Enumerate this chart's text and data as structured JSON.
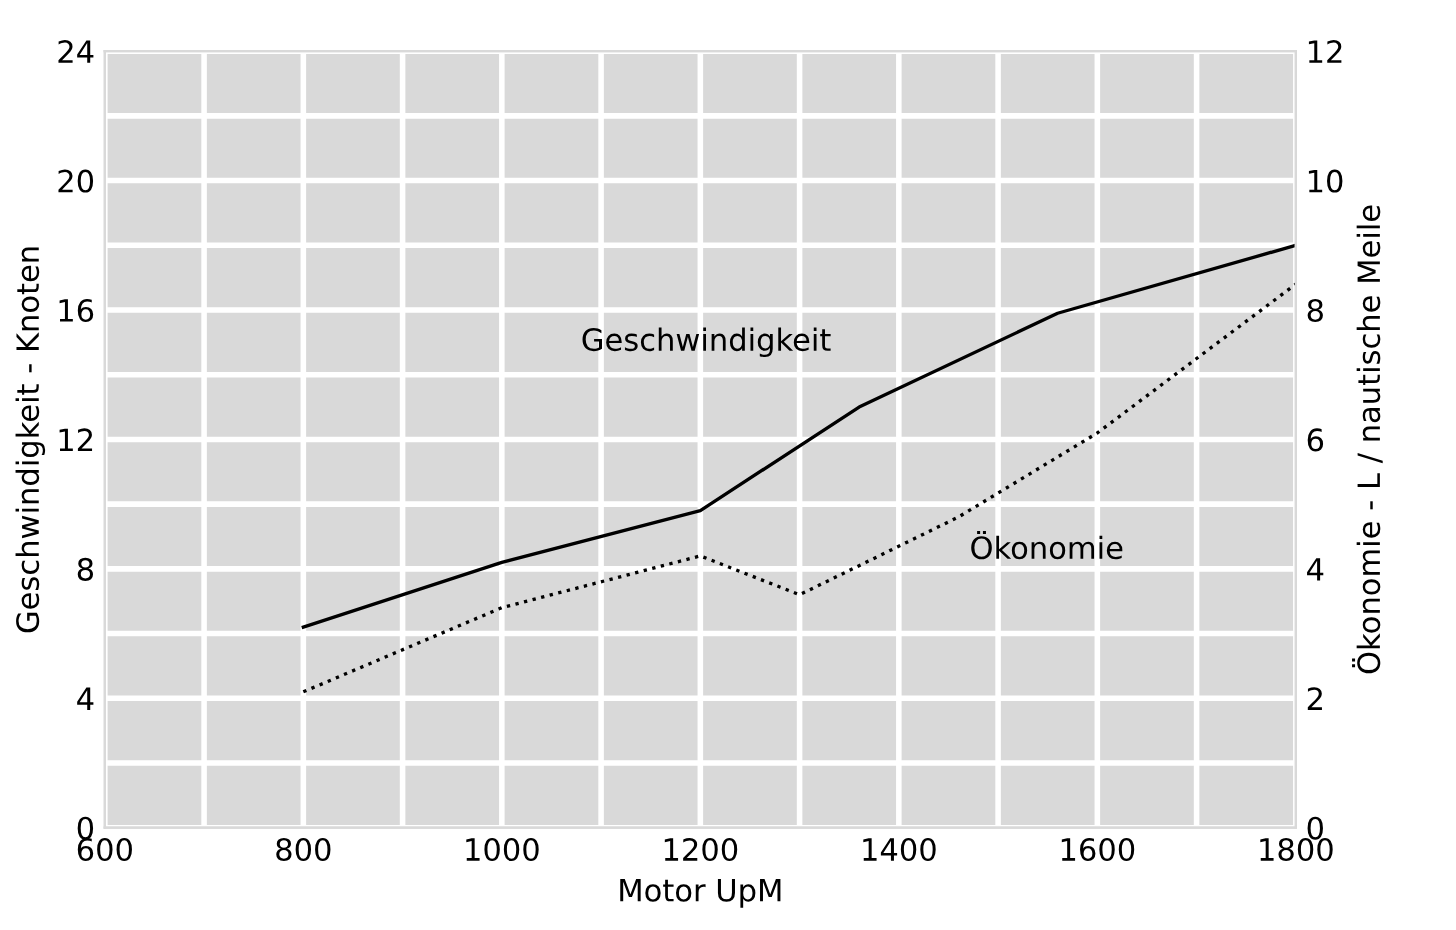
{
  "chart_data": {
    "type": "line",
    "xlabel": "Motor UpM",
    "ylabel": "Geschwindigkeit - Knoten",
    "y2label": "Ökonomie - L / nautische Meile",
    "xlim": [
      600,
      1800
    ],
    "xticks": [
      600,
      {
        "value": 700,
        "label": null
      },
      800,
      {
        "value": 900,
        "label": null
      },
      1000,
      {
        "value": 1100,
        "label": null
      },
      1200,
      {
        "value": 1300,
        "label": null
      },
      1400,
      {
        "value": 1500,
        "label": null
      },
      1600,
      {
        "value": 1700,
        "label": null
      },
      1800
    ],
    "ylim": [
      0,
      24
    ],
    "yticks": [
      0,
      {
        "value": 2,
        "label": null
      },
      4,
      {
        "value": 6,
        "label": null
      },
      8,
      {
        "value": 10,
        "label": null
      },
      12,
      {
        "value": 14,
        "label": null
      },
      16,
      {
        "value": 18,
        "label": null
      },
      20,
      {
        "value": 22,
        "label": null
      },
      24
    ],
    "y2lim": [
      0,
      12
    ],
    "y2ticks": [
      0,
      2,
      4,
      6,
      8,
      10,
      12
    ],
    "grid": true,
    "legend": false,
    "series": [
      {
        "name": "Geschwindigkeit",
        "color": "#000000",
        "line_style": "solid",
        "x": [
          800,
          1000,
          1200,
          1360,
          1560,
          1800
        ],
        "values": [
          6.2,
          8.2,
          9.8,
          13.0,
          15.9,
          18.0
        ]
      },
      {
        "name": "Ökonomie",
        "color": "#000000",
        "line_style": "dotted",
        "axis": "y2",
        "x": [
          800,
          1000,
          1200,
          1300,
          1460,
          1600,
          1800
        ],
        "values": [
          2.1,
          3.4,
          4.2,
          3.6,
          4.8,
          6.1,
          8.4
        ]
      }
    ]
  }
}
